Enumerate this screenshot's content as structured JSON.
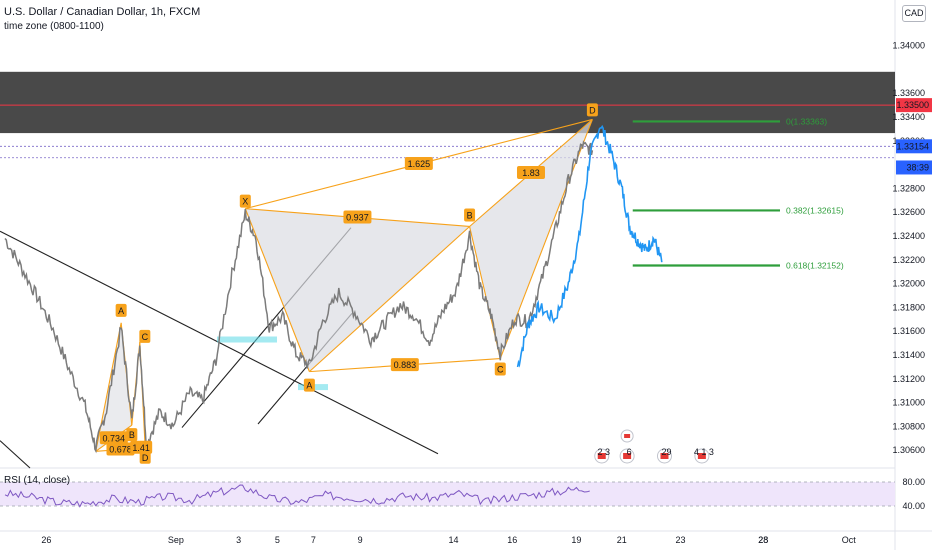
{
  "header": {
    "title": "U.S. Dollar / Canadian Dollar, 1h, FXCM",
    "subtitle": "time zone (0800-1100)",
    "currency": "CAD"
  },
  "rsi": {
    "title": "RSI (14, close)",
    "levels": [
      "80.00",
      "40.00"
    ],
    "upper": 80,
    "lower": 40
  },
  "colors": {
    "price": "#7b7b7b",
    "projection": "#2196f3",
    "pattern": "#f7a21b",
    "fib": "#2e9e3b",
    "zone": "#3a3a3a",
    "resistance": "#f23645",
    "rsi": "#7e57c2",
    "rsi_band": "#efe5fb",
    "trendline": "#222222",
    "cyan": "#5ad8e6"
  },
  "chart_data": {
    "type": "line",
    "title": "U.S. Dollar / Canadian Dollar, 1h, FXCM",
    "ylim": [
      1.3045,
      1.3435
    ],
    "y_ticks": [
      "1.34000",
      "1.33600",
      "1.33400",
      "1.33200",
      "1.32800",
      "1.32600",
      "1.32400",
      "1.32200",
      "1.32000",
      "1.31800",
      "1.31600",
      "1.31400",
      "1.31200",
      "1.31000",
      "1.30800",
      "1.30600"
    ],
    "x_ticks": [
      "26",
      "28",
      "Sep",
      "3",
      "5",
      "7",
      "9",
      "14",
      "16",
      "19",
      "21",
      "23",
      "28",
      "Oct"
    ],
    "price_badges": [
      {
        "label": "1.33500",
        "value": 1.335
      },
      {
        "label": "1.33154",
        "value": 1.33154
      },
      {
        "label": "38:39",
        "value": 1.32976
      }
    ],
    "supply_zone": [
      1.33265,
      1.3378
    ],
    "resistance_level": 1.335,
    "dotted_levels": [
      1.33154,
      1.33058
    ],
    "harmonic_large": {
      "points": [
        {
          "label": "X",
          "t": 9.0,
          "y": 1.3263
        },
        {
          "label": "A",
          "t": 11.4,
          "y": 1.3126
        },
        {
          "label": "B",
          "t": 17.4,
          "y": 1.3248
        },
        {
          "label": "C",
          "t": 18.55,
          "y": 1.3137
        },
        {
          "label": "D",
          "t": 22.0,
          "y": 1.3338
        }
      ],
      "ratios": [
        {
          "label": "0.937",
          "from": "X",
          "to": "B"
        },
        {
          "label": "0.883",
          "from": "A",
          "to": "C"
        },
        {
          "label": "1.625",
          "from": "X",
          "to": "D"
        },
        {
          "label": "1.83",
          "from": "B",
          "to": "D"
        }
      ]
    },
    "harmonic_small": {
      "points": [
        {
          "label": "X",
          "t": 3.4,
          "y": 1.3059
        },
        {
          "label": "A",
          "t": 4.35,
          "y": 1.3167
        },
        {
          "label": "B",
          "t": 4.75,
          "y": 1.3081
        },
        {
          "label": "C",
          "t": 5.05,
          "y": 1.3151
        },
        {
          "label": "D",
          "t": 5.25,
          "y": 1.3062
        }
      ],
      "ratios": [
        {
          "label": "0.734",
          "from": "X",
          "to": "B"
        },
        {
          "label": "0.678",
          "from": "X",
          "to": "D"
        }
      ]
    },
    "extra_labels": [
      "1.41"
    ],
    "fib_levels": [
      {
        "label": "0(1.33363)",
        "value": 1.33363,
        "t0": 22.2,
        "t1": 28.0
      },
      {
        "label": "0.382(1.32615)",
        "value": 1.32615,
        "t0": 22.2,
        "t1": 28.0
      },
      {
        "label": "0.618(1.32152)",
        "value": 1.32152,
        "t0": 22.2,
        "t1": 28.0
      }
    ],
    "price_series": [
      [
        0,
        1.3238
      ],
      [
        0.6,
        1.3214
      ],
      [
        1.2,
        1.3189
      ],
      [
        1.8,
        1.3162
      ],
      [
        2.4,
        1.3128
      ],
      [
        3.0,
        1.3097
      ],
      [
        3.4,
        1.3062
      ],
      [
        3.8,
        1.3094
      ],
      [
        4.35,
        1.3163
      ],
      [
        4.75,
        1.3085
      ],
      [
        5.05,
        1.3148
      ],
      [
        5.3,
        1.3065
      ],
      [
        5.8,
        1.3092
      ],
      [
        6.3,
        1.3081
      ],
      [
        6.9,
        1.3108
      ],
      [
        7.4,
        1.3102
      ],
      [
        7.9,
        1.3136
      ],
      [
        8.5,
        1.3208
      ],
      [
        9.0,
        1.3259
      ],
      [
        9.4,
        1.3238
      ],
      [
        9.9,
        1.3163
      ],
      [
        10.4,
        1.3172
      ],
      [
        10.9,
        1.3141
      ],
      [
        11.4,
        1.3131
      ],
      [
        11.9,
        1.3168
      ],
      [
        12.5,
        1.3192
      ],
      [
        13.1,
        1.3176
      ],
      [
        13.7,
        1.3153
      ],
      [
        14.2,
        1.3166
      ],
      [
        14.8,
        1.3182
      ],
      [
        15.3,
        1.3174
      ],
      [
        15.9,
        1.3152
      ],
      [
        16.4,
        1.3177
      ],
      [
        16.9,
        1.3194
      ],
      [
        17.4,
        1.3242
      ],
      [
        17.8,
        1.3196
      ],
      [
        18.2,
        1.3174
      ],
      [
        18.55,
        1.3141
      ],
      [
        19.1,
        1.3171
      ],
      [
        19.6,
        1.3168
      ],
      [
        20.1,
        1.3203
      ],
      [
        20.6,
        1.3244
      ],
      [
        21.1,
        1.3287
      ],
      [
        21.6,
        1.3316
      ],
      [
        22.0,
        1.3312
      ]
    ],
    "projection_series": [
      [
        19.2,
        1.313
      ],
      [
        19.6,
        1.3166
      ],
      [
        20.0,
        1.318
      ],
      [
        20.6,
        1.317
      ],
      [
        21.1,
        1.32
      ],
      [
        21.5,
        1.3238
      ],
      [
        21.9,
        1.3306
      ],
      [
        22.3,
        1.3334
      ],
      [
        22.7,
        1.331
      ],
      [
        23.1,
        1.328
      ],
      [
        23.4,
        1.3247
      ],
      [
        23.7,
        1.3236
      ],
      [
        24.0,
        1.3228
      ],
      [
        24.3,
        1.3238
      ],
      [
        24.6,
        1.3218
      ]
    ],
    "rsi_series": [
      [
        0,
        61
      ],
      [
        1,
        55
      ],
      [
        2,
        46
      ],
      [
        3,
        44
      ],
      [
        4,
        52
      ],
      [
        5,
        47
      ],
      [
        6,
        56
      ],
      [
        7,
        50
      ],
      [
        8,
        63
      ],
      [
        9,
        71
      ],
      [
        10,
        52
      ],
      [
        11,
        46
      ],
      [
        12,
        58
      ],
      [
        13,
        54
      ],
      [
        14,
        50
      ],
      [
        15,
        57
      ],
      [
        16,
        53
      ],
      [
        17,
        61
      ],
      [
        18,
        47
      ],
      [
        19,
        55
      ],
      [
        20,
        60
      ],
      [
        21,
        66
      ],
      [
        22,
        71
      ]
    ],
    "events": [
      {
        "label": "2 3",
        "t": 22.35
      },
      {
        "label": "6",
        "t": 23.3
      },
      {
        "label": "29",
        "t": 24.7
      },
      {
        "label": "4 1 3",
        "t": 26.1
      }
    ]
  }
}
